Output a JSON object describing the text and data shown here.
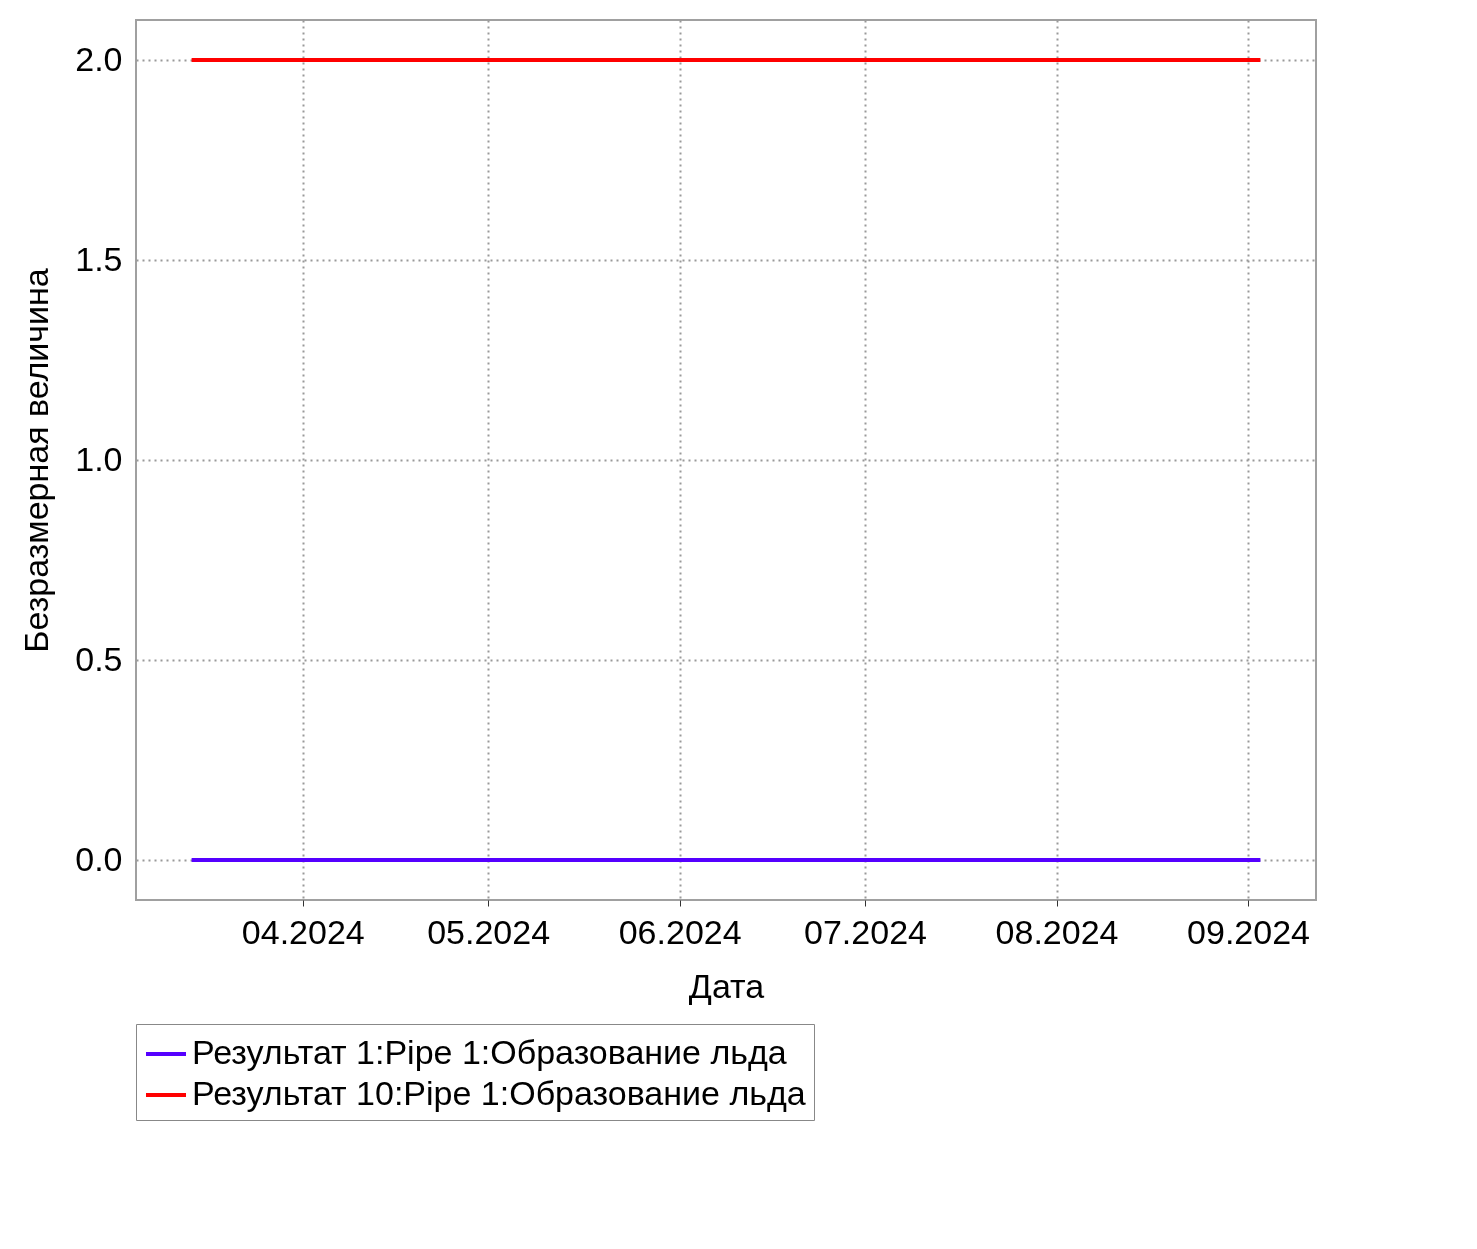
{
  "chart_data": {
    "type": "line",
    "xlabel": "Дата",
    "ylabel": "Безразмерная величина",
    "xlim": [
      "2024-03-05",
      "2024-09-12"
    ],
    "xticks": [
      {
        "value": "2024-04",
        "label": "04.2024"
      },
      {
        "value": "2024-05",
        "label": "05.2024"
      },
      {
        "value": "2024-06",
        "label": "06.2024"
      },
      {
        "value": "2024-07",
        "label": "07.2024"
      },
      {
        "value": "2024-08",
        "label": "08.2024"
      },
      {
        "value": "2024-09",
        "label": "09.2024"
      }
    ],
    "ylim": [
      -0.1,
      2.1
    ],
    "yticks": [
      {
        "value": 0,
        "label": "0.0"
      },
      {
        "value": 0.5,
        "label": "0.5"
      },
      {
        "value": 1,
        "label": "1.0"
      },
      {
        "value": 1.5,
        "label": "1.5"
      },
      {
        "value": 2,
        "label": "2.0"
      }
    ],
    "series": [
      {
        "name": "Результат 1:Pipe 1:Образование льда",
        "color": "#5500ff",
        "x": [
          "2024-03-14",
          "2024-09-03"
        ],
        "values": [
          0,
          0
        ]
      },
      {
        "name": "Результат 10:Pipe 1:Образование льда",
        "color": "#ff0000",
        "x": [
          "2024-03-14",
          "2024-09-03"
        ],
        "values": [
          2,
          2
        ]
      }
    ],
    "grid": true,
    "legend": "bottom",
    "line_style": "solid"
  }
}
